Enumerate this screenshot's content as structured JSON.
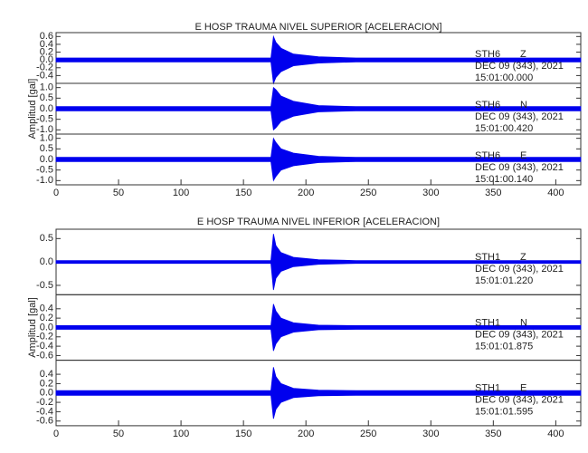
{
  "chart_data": [
    {
      "type": "area",
      "title": "E HOSP TRAUMA NIVEL SUPERIOR [ACELERACION]",
      "ylabel": "Amplitud [gal]",
      "color": "#0000ee",
      "xlim": [
        0,
        420
      ],
      "xticks": [
        0,
        50,
        100,
        150,
        200,
        250,
        300,
        350,
        400
      ],
      "panels": [
        {
          "station": "STH6",
          "component": "Z",
          "date": "DEC 09 (343), 2021",
          "time": "15:01:00.000",
          "ylim": [
            -0.6,
            0.7
          ],
          "yticks": [
            0.6,
            0.4,
            0.2,
            {
              "value": 0,
              "label": "0.0"
            },
            -0.2,
            -0.4
          ],
          "x": [
            0,
            172,
            174,
            176,
            180,
            190,
            210,
            240,
            420
          ],
          "values": [
            0.05,
            0.05,
            0.6,
            0.45,
            0.3,
            0.15,
            0.08,
            0.05,
            0.05
          ]
        },
        {
          "station": "STH6",
          "component": "N",
          "date": "DEC 09 (343), 2021",
          "time": "15:01:00.420",
          "ylim": [
            -1.2,
            1.2
          ],
          "yticks": [
            {
              "value": 1,
              "label": "1.0"
            },
            0.5,
            {
              "value": 0,
              "label": "0.0"
            },
            -0.5,
            {
              "value": -1,
              "label": "-1.0"
            }
          ],
          "x": [
            0,
            172,
            174,
            176,
            180,
            190,
            210,
            240,
            420
          ],
          "values": [
            0.1,
            0.1,
            1.0,
            0.9,
            0.6,
            0.35,
            0.15,
            0.1,
            0.1
          ]
        },
        {
          "station": "STH6",
          "component": "E",
          "date": "DEC 09 (343), 2021",
          "time": "15:01:00.140",
          "ylim": [
            -1.2,
            1.2
          ],
          "yticks": [
            {
              "value": 1,
              "label": "1.0"
            },
            0.5,
            {
              "value": 0,
              "label": "0.0"
            },
            -0.5,
            {
              "value": -1,
              "label": "-1.0"
            }
          ],
          "x": [
            0,
            172,
            174,
            176,
            180,
            190,
            210,
            240,
            420
          ],
          "values": [
            0.1,
            0.1,
            1.0,
            0.8,
            0.5,
            0.3,
            0.15,
            0.1,
            0.1
          ]
        }
      ]
    },
    {
      "type": "area",
      "title": "E HOSP TRAUMA NIVEL INFERIOR [ACELERACION]",
      "ylabel": "Amplitud [gal]",
      "color": "#0000ee",
      "xlim": [
        0,
        420
      ],
      "xticks": [
        0,
        50,
        100,
        150,
        200,
        250,
        300,
        350,
        400
      ],
      "panels": [
        {
          "station": "STH1",
          "component": "Z",
          "date": "DEC 09 (343), 2021",
          "time": "15:01:01.220",
          "ylim": [
            -0.7,
            0.7
          ],
          "yticks": [
            0.5,
            {
              "value": 0,
              "label": "0.0"
            },
            -0.5
          ],
          "x": [
            0,
            172,
            174,
            176,
            180,
            190,
            210,
            240,
            420
          ],
          "values": [
            0.03,
            0.03,
            0.6,
            0.35,
            0.2,
            0.1,
            0.05,
            0.03,
            0.03
          ]
        },
        {
          "station": "STH1",
          "component": "N",
          "date": "DEC 09 (343), 2021",
          "time": "15:01:01.875",
          "ylim": [
            -0.7,
            0.7
          ],
          "yticks": [
            0.4,
            0.2,
            {
              "value": 0,
              "label": "0.0"
            },
            -0.2,
            -0.4,
            -0.6
          ],
          "x": [
            0,
            172,
            174,
            176,
            180,
            190,
            210,
            240,
            420
          ],
          "values": [
            0.04,
            0.04,
            0.5,
            0.35,
            0.2,
            0.1,
            0.05,
            0.04,
            0.04
          ]
        },
        {
          "station": "STH1",
          "component": "E",
          "date": "DEC 09 (343), 2021",
          "time": "15:01:01.595",
          "ylim": [
            -0.7,
            0.7
          ],
          "yticks": [
            0.4,
            0.2,
            {
              "value": 0,
              "label": "0.0"
            },
            -0.2,
            -0.4,
            -0.6
          ],
          "x": [
            0,
            172,
            174,
            176,
            180,
            190,
            210,
            240,
            420
          ],
          "values": [
            0.05,
            0.05,
            0.55,
            0.35,
            0.2,
            0.1,
            0.06,
            0.05,
            0.05
          ]
        }
      ]
    }
  ]
}
